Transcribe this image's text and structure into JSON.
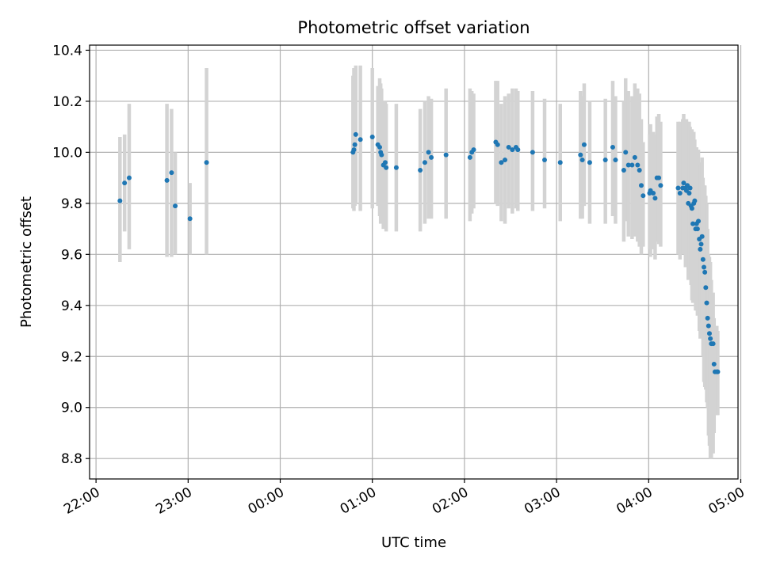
{
  "chart_data": {
    "type": "scatter",
    "title": "Photometric offset variation",
    "xlabel": "UTC time",
    "ylabel": "Photometric offset",
    "grid": true,
    "legend": "none",
    "errorbar_color": "#d3d3d3",
    "marker_color": "#1f77b4",
    "xlim_hours": [
      -2.07,
      4.97
    ],
    "ylim": [
      8.72,
      10.42
    ],
    "x_ticks": [
      {
        "value": -2,
        "label": "22:00"
      },
      {
        "value": -1,
        "label": "23:00"
      },
      {
        "value": 0,
        "label": "00:00"
      },
      {
        "value": 1,
        "label": "01:00"
      },
      {
        "value": 2,
        "label": "02:00"
      },
      {
        "value": 3,
        "label": "03:00"
      },
      {
        "value": 4,
        "label": "04:00"
      },
      {
        "value": 5,
        "label": "05:00"
      }
    ],
    "y_ticks": [
      {
        "value": 8.8,
        "label": "8.8"
      },
      {
        "value": 9.0,
        "label": "9.0"
      },
      {
        "value": 9.2,
        "label": "9.2"
      },
      {
        "value": 9.4,
        "label": "9.4"
      },
      {
        "value": 9.6,
        "label": "9.6"
      },
      {
        "value": 9.8,
        "label": "9.8"
      },
      {
        "value": 10.0,
        "label": "10.0"
      },
      {
        "value": 10.2,
        "label": "10.2"
      },
      {
        "value": 10.4,
        "label": "10.4"
      }
    ],
    "points": [
      [
        -1.74,
        9.81,
        9.57,
        10.06
      ],
      [
        -1.69,
        9.88,
        9.69,
        10.07
      ],
      [
        -1.64,
        9.9,
        9.62,
        10.19
      ],
      [
        -1.23,
        9.89,
        9.59,
        10.19
      ],
      [
        -1.18,
        9.92,
        9.59,
        10.17
      ],
      [
        -1.14,
        9.79,
        9.6,
        10.0
      ],
      [
        -0.98,
        9.74,
        9.6,
        9.88
      ],
      [
        -0.8,
        9.96,
        9.6,
        10.33
      ],
      [
        0.79,
        10.0,
        9.78,
        10.3
      ],
      [
        0.8,
        10.01,
        9.77,
        10.33
      ],
      [
        0.81,
        10.03,
        9.79,
        10.28
      ],
      [
        0.82,
        10.07,
        9.8,
        10.34
      ],
      [
        0.87,
        10.05,
        9.77,
        10.34
      ],
      [
        1.0,
        10.06,
        9.78,
        10.33
      ],
      [
        1.06,
        10.03,
        9.79,
        10.26
      ],
      [
        1.08,
        10.02,
        9.75,
        10.29
      ],
      [
        1.09,
        10.0,
        9.72,
        10.27
      ],
      [
        1.1,
        9.99,
        9.73,
        10.25
      ],
      [
        1.12,
        9.95,
        9.7,
        10.2
      ],
      [
        1.14,
        9.96,
        9.73,
        10.2
      ],
      [
        1.15,
        9.94,
        9.69,
        10.19
      ],
      [
        1.26,
        9.94,
        9.69,
        10.19
      ],
      [
        1.52,
        9.93,
        9.69,
        10.17
      ],
      [
        1.57,
        9.96,
        9.72,
        10.2
      ],
      [
        1.61,
        10.0,
        9.74,
        10.22
      ],
      [
        1.64,
        9.98,
        9.74,
        10.21
      ],
      [
        1.8,
        9.99,
        9.74,
        10.25
      ],
      [
        2.06,
        9.98,
        9.73,
        10.25
      ],
      [
        2.08,
        10.0,
        9.76,
        10.24
      ],
      [
        2.1,
        10.01,
        9.78,
        10.23
      ],
      [
        2.34,
        10.04,
        9.8,
        10.28
      ],
      [
        2.36,
        10.03,
        9.79,
        10.28
      ],
      [
        2.4,
        9.96,
        9.73,
        10.19
      ],
      [
        2.44,
        9.97,
        9.72,
        10.22
      ],
      [
        2.48,
        10.02,
        9.78,
        10.23
      ],
      [
        2.52,
        10.01,
        9.76,
        10.25
      ],
      [
        2.56,
        10.02,
        9.78,
        10.25
      ],
      [
        2.58,
        10.01,
        9.77,
        10.24
      ],
      [
        2.74,
        10.0,
        9.77,
        10.24
      ],
      [
        2.87,
        9.97,
        9.78,
        10.21
      ],
      [
        3.04,
        9.96,
        9.73,
        10.19
      ],
      [
        3.26,
        9.99,
        9.74,
        10.24
      ],
      [
        3.28,
        9.97,
        9.74,
        10.22
      ],
      [
        3.3,
        10.03,
        9.79,
        10.27
      ],
      [
        3.36,
        9.96,
        9.72,
        10.2
      ],
      [
        3.53,
        9.97,
        9.72,
        10.21
      ],
      [
        3.61,
        10.02,
        9.75,
        10.28
      ],
      [
        3.64,
        9.97,
        9.72,
        10.22
      ],
      [
        3.73,
        9.93,
        9.65,
        10.2
      ],
      [
        3.75,
        10.0,
        9.73,
        10.29
      ],
      [
        3.78,
        9.95,
        9.67,
        10.24
      ],
      [
        3.82,
        9.95,
        9.66,
        10.22
      ],
      [
        3.85,
        9.98,
        9.67,
        10.27
      ],
      [
        3.88,
        9.95,
        9.65,
        10.25
      ],
      [
        3.9,
        9.93,
        9.63,
        10.23
      ],
      [
        3.92,
        9.87,
        9.6,
        10.13
      ],
      [
        3.94,
        9.83,
        9.63,
        10.04
      ],
      [
        4.01,
        9.84,
        9.62,
        10.07
      ],
      [
        4.02,
        9.85,
        9.59,
        10.11
      ],
      [
        4.05,
        9.84,
        9.62,
        10.08
      ],
      [
        4.07,
        9.82,
        9.58,
        10.07
      ],
      [
        4.09,
        9.9,
        9.65,
        10.14
      ],
      [
        4.11,
        9.9,
        9.64,
        10.15
      ],
      [
        4.13,
        9.87,
        9.63,
        10.12
      ],
      [
        4.32,
        9.86,
        9.6,
        10.12
      ],
      [
        4.34,
        9.84,
        9.58,
        10.12
      ],
      [
        4.37,
        9.86,
        9.6,
        10.13
      ],
      [
        4.38,
        9.88,
        9.61,
        10.15
      ],
      [
        4.4,
        9.86,
        9.55,
        10.13
      ],
      [
        4.41,
        9.85,
        9.56,
        10.13
      ],
      [
        4.42,
        9.87,
        9.55,
        10.12
      ],
      [
        4.43,
        9.8,
        9.5,
        10.1
      ],
      [
        4.44,
        9.84,
        9.53,
        10.12
      ],
      [
        4.45,
        9.86,
        9.52,
        10.1
      ],
      [
        4.46,
        9.79,
        9.48,
        10.09
      ],
      [
        4.47,
        9.78,
        9.42,
        10.09
      ],
      [
        4.48,
        9.72,
        9.41,
        10.03
      ],
      [
        4.49,
        9.8,
        9.48,
        10.08
      ],
      [
        4.5,
        9.81,
        9.45,
        10.05
      ],
      [
        4.51,
        9.7,
        9.38,
        10.0
      ],
      [
        4.52,
        9.72,
        9.38,
        10.02
      ],
      [
        4.53,
        9.7,
        9.36,
        10.0
      ],
      [
        4.54,
        9.73,
        9.45,
        10.01
      ],
      [
        4.55,
        9.66,
        9.3,
        9.95
      ],
      [
        4.56,
        9.62,
        9.27,
        9.95
      ],
      [
        4.57,
        9.64,
        9.3,
        9.96
      ],
      [
        4.58,
        9.67,
        9.33,
        9.98
      ],
      [
        4.59,
        9.58,
        9.2,
        9.9
      ],
      [
        4.6,
        9.55,
        9.1,
        9.87
      ],
      [
        4.61,
        9.53,
        9.08,
        9.87
      ],
      [
        4.62,
        9.47,
        9.07,
        9.83
      ],
      [
        4.63,
        9.41,
        9.02,
        9.8
      ],
      [
        4.64,
        9.35,
        9.0,
        9.7
      ],
      [
        4.65,
        9.32,
        8.89,
        9.6
      ],
      [
        4.66,
        9.29,
        8.85,
        9.59
      ],
      [
        4.67,
        9.27,
        8.8,
        9.57
      ],
      [
        4.68,
        9.25,
        8.8,
        9.5
      ],
      [
        4.7,
        9.25,
        8.82,
        9.45
      ],
      [
        4.71,
        9.17,
        8.9,
        9.35
      ],
      [
        4.72,
        9.14,
        8.97,
        9.32
      ],
      [
        4.74,
        9.14,
        8.97,
        9.32
      ],
      [
        4.75,
        9.14,
        8.97,
        9.3
      ]
    ]
  }
}
